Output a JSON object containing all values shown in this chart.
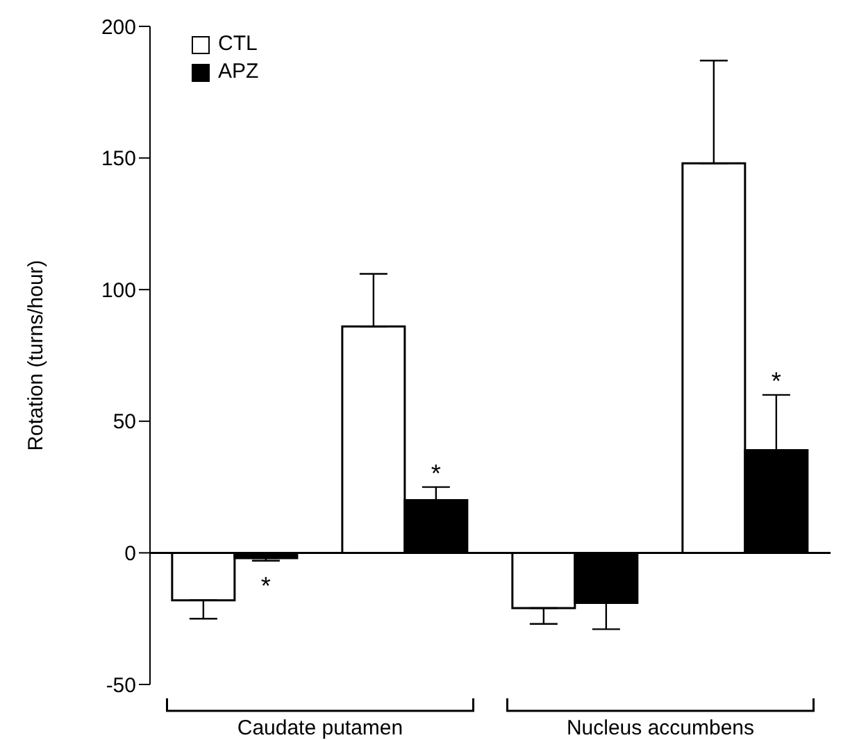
{
  "chart_data": {
    "type": "bar",
    "ylabel": "Rotation (turns/hour)",
    "categories": [
      null,
      null,
      null,
      null
    ],
    "series": [
      {
        "name": "CTL",
        "color": "#ffffff",
        "values": [
          -18,
          86,
          -21,
          148
        ],
        "errors": [
          [
            -25,
            -18
          ],
          [
            86,
            106
          ],
          [
            -27,
            -21
          ],
          [
            148,
            187
          ]
        ]
      },
      {
        "name": "APZ",
        "color": "#000000",
        "values": [
          -2,
          20,
          -19,
          39
        ],
        "errors": [
          [
            -3,
            -2
          ],
          [
            20,
            25
          ],
          [
            -29,
            -19
          ],
          [
            39,
            60
          ]
        ],
        "value_labels": [
          "*",
          "*",
          null,
          "*"
        ]
      }
    ],
    "annotations": [
      "Caudate putamen",
      "Nucleus accumbens"
    ],
    "ylim": [
      -50,
      200
    ],
    "yticks": [
      -50,
      0,
      50,
      100,
      150,
      200
    ],
    "legend": "top left"
  }
}
